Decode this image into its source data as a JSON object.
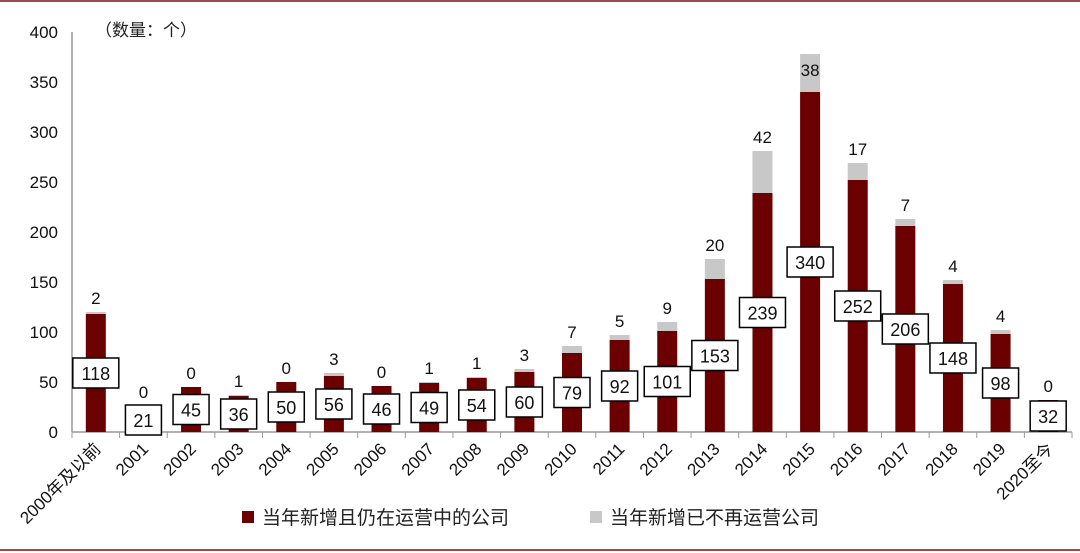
{
  "chart_data": {
    "type": "bar",
    "stacked": true,
    "unit_label": "（数量：个）",
    "categories": [
      "2000年及以前",
      "2001",
      "2002",
      "2003",
      "2004",
      "2005",
      "2006",
      "2007",
      "2008",
      "2009",
      "2010",
      "2011",
      "2012",
      "2013",
      "2014",
      "2015",
      "2016",
      "2017",
      "2018",
      "2019",
      "2020至今"
    ],
    "series": [
      {
        "name": "当年新增且仍在运营中的公司",
        "color": "#6b0000",
        "values": [
          118,
          21,
          45,
          36,
          50,
          56,
          46,
          49,
          54,
          60,
          79,
          92,
          101,
          153,
          239,
          340,
          252,
          206,
          148,
          98,
          32
        ]
      },
      {
        "name": "当年新增已不再运营公司",
        "color": "#c8c8c8",
        "values": [
          2,
          0,
          0,
          1,
          0,
          3,
          0,
          1,
          1,
          3,
          7,
          5,
          9,
          20,
          42,
          38,
          17,
          7,
          4,
          4,
          0
        ]
      }
    ],
    "ylim": [
      0,
      400
    ],
    "yticks": [
      0,
      50,
      100,
      150,
      200,
      250,
      300,
      350,
      400
    ],
    "grid": false,
    "legend_position": "bottom"
  }
}
